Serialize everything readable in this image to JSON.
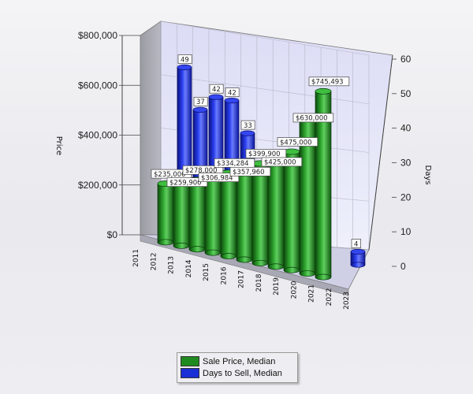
{
  "chart_data": {
    "type": "bar",
    "subtype": "3d-cylinder-dual-axis",
    "categories": [
      "2011",
      "2012",
      "2013",
      "2014",
      "2015",
      "2016",
      "2017",
      "2018",
      "2019",
      "2020",
      "2021",
      "2022",
      "2023"
    ],
    "series": [
      {
        "name": "Sale Price, Median",
        "axis": "left",
        "color": "#1f8a1f",
        "values": [
          null,
          235000,
          259900,
          278000,
          306984,
          334284,
          357960,
          399900,
          425000,
          475000,
          630000,
          745493,
          null
        ],
        "labels": [
          null,
          "$235,000",
          "$259,900",
          "$278,000",
          "$306,984",
          "$334,284",
          "$357,960",
          "$399,900",
          "$425,000",
          "$475,000",
          "$630,000",
          "$745,493",
          null
        ]
      },
      {
        "name": "Days to Sell, Median",
        "axis": "right",
        "color": "#1a2fd6",
        "values": [
          null,
          49,
          37,
          42,
          42,
          33,
          null,
          null,
          null,
          null,
          null,
          null,
          4
        ],
        "labels": [
          null,
          "49",
          "37",
          "42",
          "42",
          "33",
          null,
          null,
          null,
          null,
          null,
          null,
          "4"
        ]
      }
    ],
    "ylabel": "Price",
    "y2label": "Days",
    "ylim": [
      0,
      800000
    ],
    "y2lim": [
      0,
      60
    ],
    "yticks": [
      "$0",
      "$200,000",
      "$400,000",
      "$600,000",
      "$800,000"
    ],
    "y2ticks": [
      "0",
      "10",
      "20",
      "30",
      "40",
      "50",
      "60"
    ],
    "grid": true,
    "legend": "bottom-center"
  },
  "legend": {
    "items": [
      {
        "label": "Sale Price, Median",
        "color": "#1f8a1f"
      },
      {
        "label": "Days to Sell, Median",
        "color": "#1a2fd6"
      }
    ]
  }
}
